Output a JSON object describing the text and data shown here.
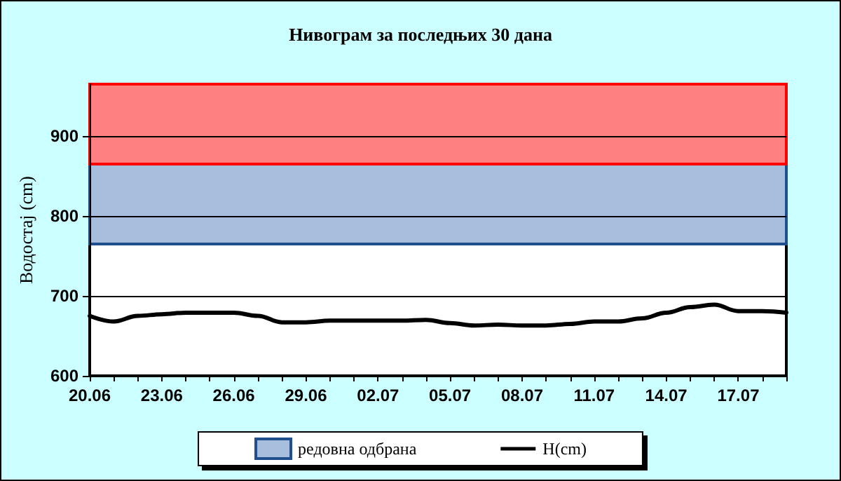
{
  "chart_data": {
    "type": "line",
    "title": "Нивограм за последњих 30 дана",
    "ylabel": "Водостај (cm)",
    "categories": [
      "20.06",
      null,
      null,
      "23.06",
      null,
      null,
      "26.06",
      null,
      null,
      "29.06",
      null,
      null,
      "02.07",
      null,
      null,
      "05.07",
      null,
      null,
      "08.07",
      null,
      null,
      "11.07",
      null,
      null,
      "14.07",
      null,
      null,
      "17.07",
      null,
      null
    ],
    "series": [
      {
        "name": "H(cm)",
        "color": "#000000",
        "values": [
          675,
          668,
          675,
          677,
          679,
          679,
          679,
          675,
          667,
          667,
          669,
          669,
          669,
          669,
          670,
          666,
          663,
          664,
          663,
          663,
          665,
          668,
          668,
          672,
          679,
          686,
          689,
          681,
          681,
          679
        ]
      }
    ],
    "ylim": [
      600,
      965
    ],
    "yticks": [
      600,
      700,
      800,
      900
    ],
    "grid": "y",
    "legend": "bottom",
    "marker": "none",
    "line_style": "solid",
    "bands": [
      {
        "axis": "y",
        "from": 600,
        "to": 765,
        "color": "#ffffff"
      },
      {
        "axis": "y",
        "from": 765,
        "to": 865,
        "label": "редовна одбрана",
        "color": "#a7bedd"
      },
      {
        "axis": "y",
        "from": 865,
        "to": 965,
        "color": "#ff8080"
      }
    ]
  }
}
